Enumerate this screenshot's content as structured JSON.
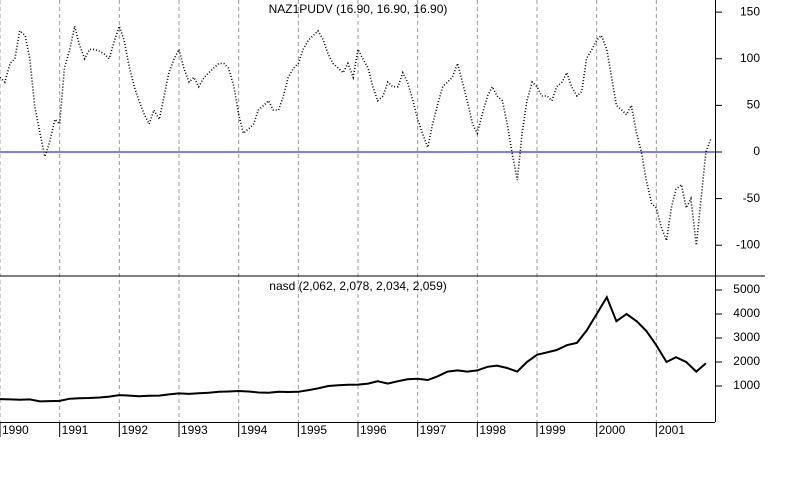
{
  "chart_data": [
    {
      "type": "line",
      "title": "NAZ1PUDV (16.90, 16.90, 16.90)",
      "color": "#000000",
      "line_style": "dotted",
      "xlim": [
        1990,
        2002
      ],
      "ylim": [
        -133,
        163
      ],
      "yticks": [
        -100,
        -50,
        0,
        50,
        100,
        150
      ],
      "hline": 0,
      "hline_color": "#0000cc",
      "x": [
        1990.0,
        1990.08,
        1990.17,
        1990.25,
        1990.33,
        1990.42,
        1990.5,
        1990.58,
        1990.67,
        1990.75,
        1990.83,
        1990.92,
        1991.0,
        1991.08,
        1991.17,
        1991.25,
        1991.33,
        1991.42,
        1991.5,
        1991.58,
        1991.67,
        1991.75,
        1991.83,
        1991.92,
        1992.0,
        1992.08,
        1992.17,
        1992.25,
        1992.33,
        1992.42,
        1992.5,
        1992.58,
        1992.67,
        1992.75,
        1992.83,
        1992.92,
        1993.0,
        1993.08,
        1993.17,
        1993.25,
        1993.33,
        1993.42,
        1993.5,
        1993.58,
        1993.67,
        1993.75,
        1993.83,
        1993.92,
        1994.0,
        1994.08,
        1994.17,
        1994.25,
        1994.33,
        1994.42,
        1994.5,
        1994.58,
        1994.67,
        1994.75,
        1994.83,
        1994.92,
        1995.0,
        1995.08,
        1995.17,
        1995.25,
        1995.33,
        1995.42,
        1995.5,
        1995.58,
        1995.67,
        1995.75,
        1995.83,
        1995.92,
        1996.0,
        1996.08,
        1996.17,
        1996.25,
        1996.33,
        1996.42,
        1996.5,
        1996.58,
        1996.67,
        1996.75,
        1996.83,
        1996.92,
        1997.0,
        1997.08,
        1997.17,
        1997.25,
        1997.33,
        1997.42,
        1997.5,
        1997.58,
        1997.67,
        1997.75,
        1997.83,
        1997.92,
        1998.0,
        1998.08,
        1998.17,
        1998.25,
        1998.33,
        1998.42,
        1998.5,
        1998.58,
        1998.67,
        1998.75,
        1998.83,
        1998.92,
        1999.0,
        1999.08,
        1999.17,
        1999.25,
        1999.33,
        1999.42,
        1999.5,
        1999.58,
        1999.67,
        1999.75,
        1999.83,
        1999.92,
        2000.0,
        2000.08,
        2000.17,
        2000.25,
        2000.33,
        2000.42,
        2000.5,
        2000.58,
        2000.67,
        2000.75,
        2000.83,
        2000.92,
        2001.0,
        2001.08,
        2001.17,
        2001.25,
        2001.33,
        2001.42,
        2001.5,
        2001.58,
        2001.67,
        2001.75,
        2001.83,
        2001.92
      ],
      "values": [
        80,
        75,
        95,
        100,
        130,
        125,
        100,
        50,
        20,
        -5,
        10,
        35,
        30,
        90,
        110,
        135,
        115,
        100,
        110,
        110,
        108,
        105,
        100,
        120,
        135,
        120,
        90,
        70,
        55,
        40,
        30,
        45,
        35,
        60,
        85,
        100,
        110,
        90,
        75,
        80,
        70,
        80,
        85,
        90,
        95,
        95,
        90,
        70,
        40,
        20,
        25,
        30,
        45,
        50,
        55,
        45,
        45,
        60,
        80,
        90,
        95,
        110,
        120,
        125,
        130,
        120,
        105,
        95,
        90,
        85,
        95,
        80,
        110,
        100,
        90,
        70,
        55,
        60,
        75,
        70,
        70,
        85,
        75,
        55,
        35,
        20,
        5,
        30,
        50,
        70,
        75,
        80,
        95,
        75,
        55,
        30,
        20,
        40,
        60,
        70,
        60,
        55,
        30,
        0,
        -30,
        20,
        55,
        75,
        70,
        60,
        60,
        55,
        70,
        75,
        85,
        70,
        60,
        65,
        100,
        110,
        120,
        125,
        110,
        80,
        50,
        45,
        40,
        50,
        20,
        0,
        -30,
        -55,
        -60,
        -80,
        -95,
        -60,
        -40,
        -35,
        -60,
        -50,
        -100,
        -50,
        0,
        15
      ]
    },
    {
      "type": "line",
      "title": "nasd (2,062, 2,078, 2,034, 2,059)",
      "color": "#000000",
      "line_style": "solid",
      "xlim": [
        1990,
        2002
      ],
      "ylim": [
        -500,
        5500
      ],
      "yticks": [
        1000,
        2000,
        3000,
        4000,
        5000
      ],
      "xticks": [
        1990,
        1991,
        1992,
        1993,
        1994,
        1995,
        1996,
        1997,
        1998,
        1999,
        2000,
        2001
      ],
      "grid": "x",
      "x": [
        1990.0,
        1990.17,
        1990.33,
        1990.5,
        1990.67,
        1990.83,
        1991.0,
        1991.17,
        1991.33,
        1991.5,
        1991.67,
        1991.83,
        1992.0,
        1992.17,
        1992.33,
        1992.5,
        1992.67,
        1992.83,
        1993.0,
        1993.17,
        1993.33,
        1993.5,
        1993.67,
        1993.83,
        1994.0,
        1994.17,
        1994.33,
        1994.5,
        1994.67,
        1994.83,
        1995.0,
        1995.17,
        1995.33,
        1995.5,
        1995.67,
        1995.83,
        1996.0,
        1996.17,
        1996.33,
        1996.5,
        1996.67,
        1996.83,
        1997.0,
        1997.17,
        1997.33,
        1997.5,
        1997.67,
        1997.83,
        1998.0,
        1998.17,
        1998.33,
        1998.5,
        1998.67,
        1998.83,
        1999.0,
        1999.17,
        1999.33,
        1999.5,
        1999.67,
        1999.83,
        2000.0,
        2000.17,
        2000.33,
        2000.5,
        2000.67,
        2000.83,
        2001.0,
        2001.17,
        2001.33,
        2001.5,
        2001.67,
        2001.83
      ],
      "values": [
        455,
        440,
        430,
        440,
        360,
        370,
        380,
        470,
        490,
        500,
        520,
        560,
        620,
        600,
        570,
        590,
        600,
        650,
        690,
        670,
        700,
        720,
        760,
        770,
        790,
        770,
        730,
        720,
        760,
        750,
        760,
        830,
        900,
        1000,
        1030,
        1050,
        1060,
        1100,
        1200,
        1100,
        1200,
        1280,
        1300,
        1250,
        1400,
        1600,
        1650,
        1600,
        1650,
        1800,
        1850,
        1750,
        1600,
        2000,
        2300,
        2400,
        2500,
        2700,
        2800,
        3300,
        4000,
        4700,
        3700,
        4000,
        3700,
        3300,
        2700,
        2000,
        2200,
        2000,
        1600,
        1950
      ]
    }
  ]
}
